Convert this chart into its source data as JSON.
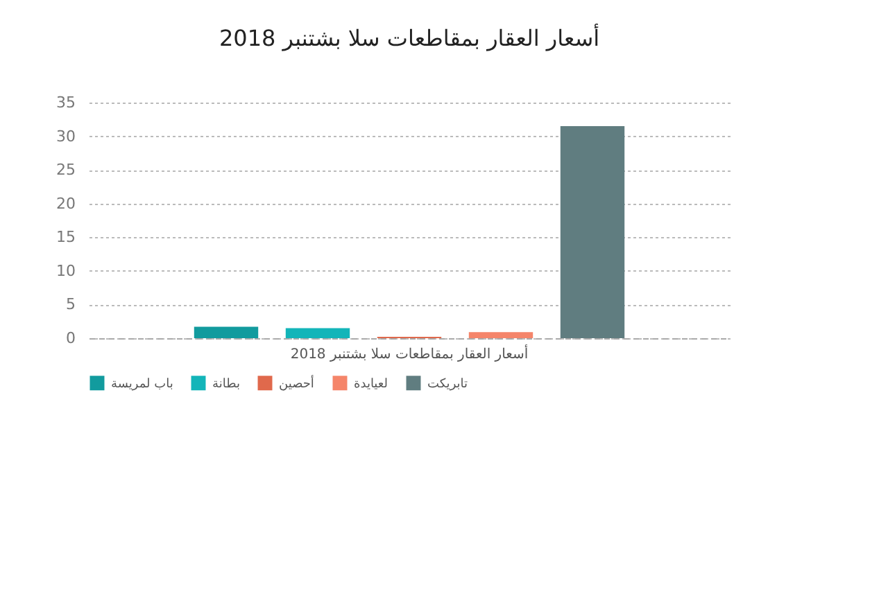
{
  "chart_data": {
    "type": "bar",
    "title": "أسعار العقار بمقاطعات سلا بشتنبر 2018",
    "categories": [
      "أسعار العقار بمقاطعات سلا بشتنبر 2018"
    ],
    "series": [
      {
        "name": "باب لمريسة",
        "color": "#129b9e",
        "values": [
          1.7
        ]
      },
      {
        "name": "بطانة",
        "color": "#13b5b9",
        "values": [
          1.5
        ]
      },
      {
        "name": "أحصين",
        "color": "#e0694c",
        "values": [
          0.2
        ]
      },
      {
        "name": "لعيايدة",
        "color": "#f5856a",
        "values": [
          0.9
        ]
      },
      {
        "name": "تابريكت",
        "color": "#607d80",
        "values": [
          31.5
        ]
      }
    ],
    "ylim": [
      0,
      35
    ],
    "yticks": [
      0,
      5,
      10,
      15,
      20,
      25,
      30,
      35
    ],
    "grid": "y",
    "legend": "bottom"
  }
}
